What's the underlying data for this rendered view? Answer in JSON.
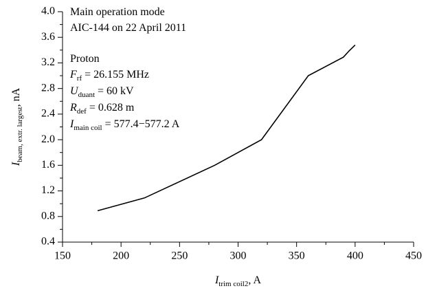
{
  "chart_data": {
    "type": "line",
    "x": [
      180,
      220,
      280,
      320,
      360,
      390,
      395,
      400
    ],
    "series": [
      {
        "name": "AIC-144",
        "color": "#000000",
        "values": [
          0.89,
          1.09,
          1.6,
          2.0,
          3.0,
          3.29,
          3.39,
          3.48
        ]
      }
    ],
    "xlim": [
      150,
      450
    ],
    "xticks": [
      150,
      200,
      250,
      300,
      350,
      400,
      450
    ],
    "xticks_minor": [
      175,
      225,
      275,
      325,
      375,
      425
    ],
    "ylim": [
      0.4,
      4.0
    ],
    "yticks": [
      0.4,
      0.8,
      1.2,
      1.6,
      {
        "value": 2.0,
        "label": "2.0"
      },
      2.4,
      2.8,
      3.2,
      3.6,
      {
        "value": 4.0,
        "label": "4.0"
      }
    ],
    "yticks_minor": [
      0.6,
      1.0,
      1.4,
      1.8,
      2.2,
      2.6,
      3.0,
      3.4,
      3.8
    ],
    "xlabel": {
      "main": "I",
      "sub": "trim coil2",
      "rest": ", A"
    },
    "ylabel": {
      "main": "I",
      "sub": "beam, extr. largest",
      "rest": ", nA"
    },
    "annotations": [
      {
        "main": "Main operation mode"
      },
      {
        "main": "AIC-144 on 22 April 2011"
      },
      {
        "main": "Proton"
      },
      {
        "main": "F",
        "sub": "rf",
        "rest": " = 26.155 MHz"
      },
      {
        "main": "U",
        "sub": "duant",
        "rest": " = 60 kV"
      },
      {
        "main": "R",
        "sub": "def",
        "rest": " = 0.628 m"
      },
      {
        "main": "I",
        "sub": "main coil",
        "rest": " = 577.4−577.2 A"
      }
    ]
  }
}
